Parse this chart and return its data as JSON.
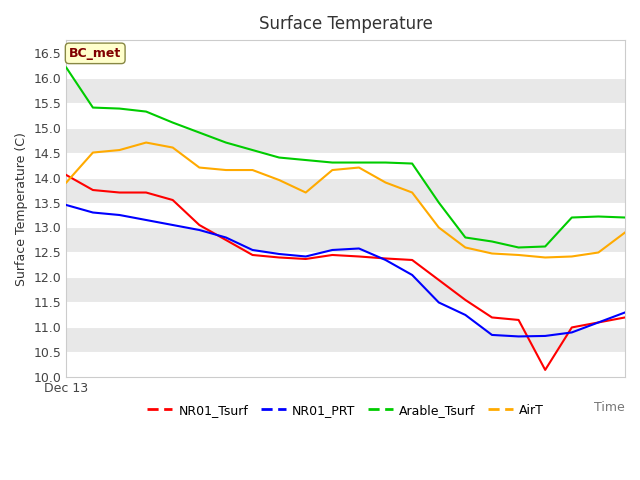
{
  "title": "Surface Temperature",
  "xlabel": "Time",
  "ylabel": "Surface Temperature (C)",
  "annotation": "BC_met",
  "ylim": [
    10.0,
    16.75
  ],
  "yticks": [
    10.0,
    10.5,
    11.0,
    11.5,
    12.0,
    12.5,
    13.0,
    13.5,
    14.0,
    14.5,
    15.0,
    15.5,
    16.0,
    16.5
  ],
  "xlabel_start": "Dec 13",
  "series": {
    "NR01_Tsurf": {
      "color": "#ff0000",
      "values": [
        14.05,
        13.75,
        13.7,
        13.7,
        13.55,
        13.05,
        12.75,
        12.45,
        12.4,
        12.37,
        12.45,
        12.42,
        12.38,
        12.35,
        11.95,
        11.55,
        11.2,
        11.15,
        10.15,
        11.0,
        11.1,
        11.2
      ]
    },
    "NR01_PRT": {
      "color": "#0000ff",
      "values": [
        13.45,
        13.3,
        13.25,
        13.15,
        13.05,
        12.95,
        12.8,
        12.55,
        12.47,
        12.42,
        12.55,
        12.58,
        12.35,
        12.05,
        11.5,
        11.25,
        10.85,
        10.82,
        10.83,
        10.9,
        11.1,
        11.3
      ]
    },
    "Arable_Tsurf": {
      "color": "#00cc00",
      "values": [
        16.2,
        15.4,
        15.38,
        15.32,
        15.1,
        14.9,
        14.7,
        14.55,
        14.4,
        14.35,
        14.3,
        14.3,
        14.3,
        14.28,
        13.5,
        12.8,
        12.72,
        12.6,
        12.62,
        13.2,
        13.22,
        13.2
      ]
    },
    "AirT": {
      "color": "#ffaa00",
      "values": [
        13.9,
        14.5,
        14.55,
        14.7,
        14.6,
        14.2,
        14.15,
        14.15,
        13.95,
        13.7,
        14.15,
        14.2,
        13.9,
        13.7,
        13.0,
        12.6,
        12.48,
        12.45,
        12.4,
        12.42,
        12.5,
        12.9
      ]
    }
  },
  "bg_color": "#ffffff",
  "band_colors": [
    "#ffffff",
    "#e8e8e8"
  ],
  "annotation_box_color": "#ffffcc",
  "annotation_text_color": "#800000",
  "annotation_border_color": "#888844"
}
